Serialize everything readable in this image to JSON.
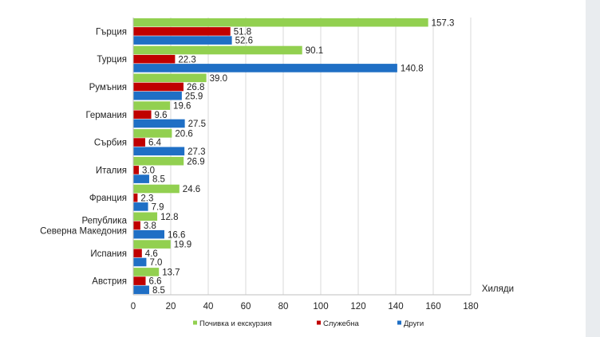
{
  "chart_data": {
    "type": "bar",
    "orientation": "horizontal",
    "unit_label": "Хиляди",
    "xlim": [
      0,
      180
    ],
    "ticks": [
      0,
      20,
      40,
      60,
      80,
      100,
      120,
      140,
      160,
      180
    ],
    "categories": [
      [
        "Гърция"
      ],
      [
        "Турция"
      ],
      [
        "Румъния"
      ],
      [
        "Германия"
      ],
      [
        "Сърбия"
      ],
      [
        "Италия"
      ],
      [
        "Франция"
      ],
      [
        "Република",
        "Северна Македония"
      ],
      [
        "Испания"
      ],
      [
        "Австрия"
      ]
    ],
    "series": [
      {
        "name": "Почивка и екскурзия",
        "color": "#92d050",
        "values": [
          157.3,
          90.1,
          39.0,
          19.6,
          20.6,
          26.9,
          24.6,
          12.8,
          19.9,
          13.7
        ]
      },
      {
        "name": "Служебна",
        "color": "#c00000",
        "values": [
          51.8,
          22.3,
          26.8,
          9.6,
          6.4,
          3.0,
          2.3,
          3.8,
          4.6,
          6.6
        ]
      },
      {
        "name": "Други",
        "color": "#1f6fc5",
        "values": [
          52.6,
          140.8,
          25.9,
          27.5,
          27.3,
          8.5,
          7.9,
          16.6,
          7.0,
          8.5
        ]
      }
    ],
    "grid": true,
    "legend_position": "bottom"
  }
}
